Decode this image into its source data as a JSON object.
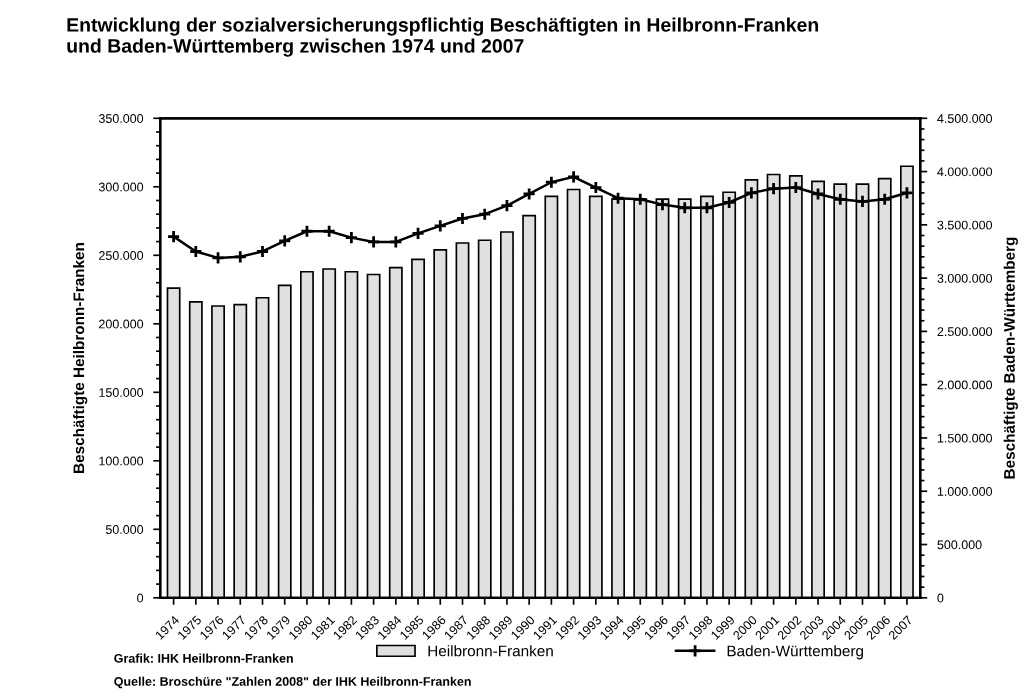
{
  "chart_data": {
    "type": "bar",
    "title": "Entwicklung der sozialversicherungspflichtig Beschäftigten in Heilbronn-Franken\nund Baden-Württemberg zwischen 1974 und 2007",
    "ylabel": "Beschäftigte Heilbronn-Franken",
    "y2label": "Beschäftigte Baden-Württemberg",
    "categories": [
      "1974",
      "1975",
      "1976",
      "1977",
      "1978",
      "1979",
      "1980",
      "1981",
      "1982",
      "1983",
      "1984",
      "1985",
      "1986",
      "1987",
      "1988",
      "1989",
      "1990",
      "1991",
      "1992",
      "1993",
      "1994",
      "1995",
      "1996",
      "1997",
      "1998",
      "1999",
      "2000",
      "2001",
      "2002",
      "2003",
      "2004",
      "2005",
      "2006",
      "2007"
    ],
    "series": [
      {
        "name": "Heilbronn-Franken",
        "color": "#e0e0e0",
        "values": [
          226000,
          216000,
          213000,
          214000,
          219000,
          228000,
          238000,
          240000,
          238000,
          236000,
          241000,
          247000,
          254000,
          259000,
          261000,
          267000,
          279000,
          293000,
          298000,
          293000,
          291000,
          291000,
          291000,
          291000,
          293000,
          296000,
          305000,
          309000,
          308000,
          304000,
          302000,
          302000,
          306000,
          315000
        ]
      },
      {
        "name": "Baden-Württemberg",
        "type": "line",
        "axis": "y2",
        "color": "#000000",
        "marker": "cross",
        "values": [
          3390000,
          3250000,
          3190000,
          3200000,
          3250000,
          3350000,
          3440000,
          3440000,
          3380000,
          3340000,
          3340000,
          3420000,
          3490000,
          3560000,
          3600000,
          3680000,
          3790000,
          3900000,
          3950000,
          3850000,
          3750000,
          3740000,
          3690000,
          3660000,
          3660000,
          3710000,
          3800000,
          3840000,
          3850000,
          3790000,
          3740000,
          3720000,
          3740000,
          3800000
        ]
      }
    ],
    "ylim": [
      0,
      350000
    ],
    "yticks": [
      {
        "value": 0,
        "label": "0"
      },
      {
        "value": 50000,
        "label": "50.000"
      },
      {
        "value": 100000,
        "label": "100.000"
      },
      {
        "value": 150000,
        "label": "150.000"
      },
      {
        "value": 200000,
        "label": "200.000"
      },
      {
        "value": 250000,
        "label": "250.000"
      },
      {
        "value": 300000,
        "label": "300.000"
      },
      {
        "value": 350000,
        "label": "350.000"
      }
    ],
    "y2lim": [
      0,
      4500000
    ],
    "y2ticks": [
      {
        "value": 0,
        "label": "0"
      },
      {
        "value": 500000,
        "label": "500.000"
      },
      {
        "value": 1000000,
        "label": "1.000.000"
      },
      {
        "value": 1500000,
        "label": "1.500.000"
      },
      {
        "value": 2000000,
        "label": "2.000.000"
      },
      {
        "value": 2500000,
        "label": "2.500.000"
      },
      {
        "value": 3000000,
        "label": "3.000.000"
      },
      {
        "value": 3500000,
        "label": "3.500.000"
      },
      {
        "value": 4000000,
        "label": "4.000.000"
      },
      {
        "value": 4500000,
        "label": "4.500.000"
      }
    ],
    "legend": "bottom",
    "grid": false,
    "annotations": [
      "Grafik: IHK Heilbronn-Franken",
      "Quelle: Broschüre \"Zahlen 2008\" der IHK Heilbronn-Franken"
    ]
  }
}
